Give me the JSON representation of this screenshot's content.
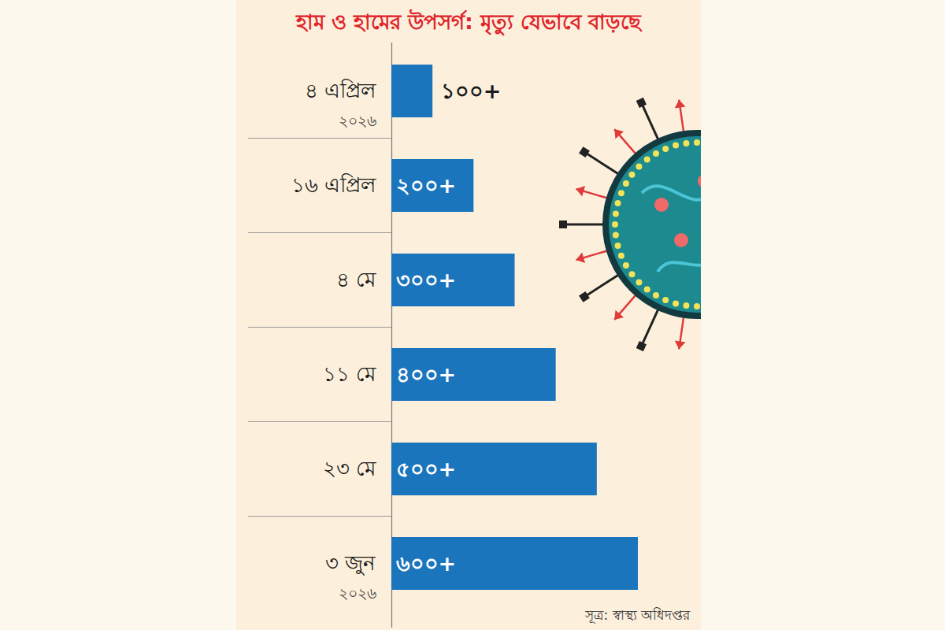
{
  "chart_data": {
    "type": "bar",
    "title": "হাম ও হামের উপসর্গ: মৃত্যু যেভাবে বাড়ছে",
    "orientation": "horizontal",
    "categories": [
      "৪ এপ্রিল",
      "১৬ এপ্রিল",
      "৪ মে",
      "১১ মে",
      "২৩ মে",
      "৩ জুন"
    ],
    "values": [
      100,
      200,
      300,
      400,
      500,
      600
    ],
    "value_labels": [
      "১০০+",
      "২০০+",
      "৩০০+",
      "৪০০+",
      "৫০০+",
      "৬০০+"
    ],
    "data_labels": true,
    "color": "#1b75bc",
    "xlim": [
      0,
      600
    ],
    "tick_labels": "y",
    "grid": false,
    "annotations": [
      {
        "text": "২০২৬",
        "category": "৪ এপ্রিল"
      },
      {
        "text": "২০২৬",
        "category": "৩ জুন"
      }
    ],
    "source": "সূত্র: স্বাস্থ্য অধিদপ্তর"
  }
}
